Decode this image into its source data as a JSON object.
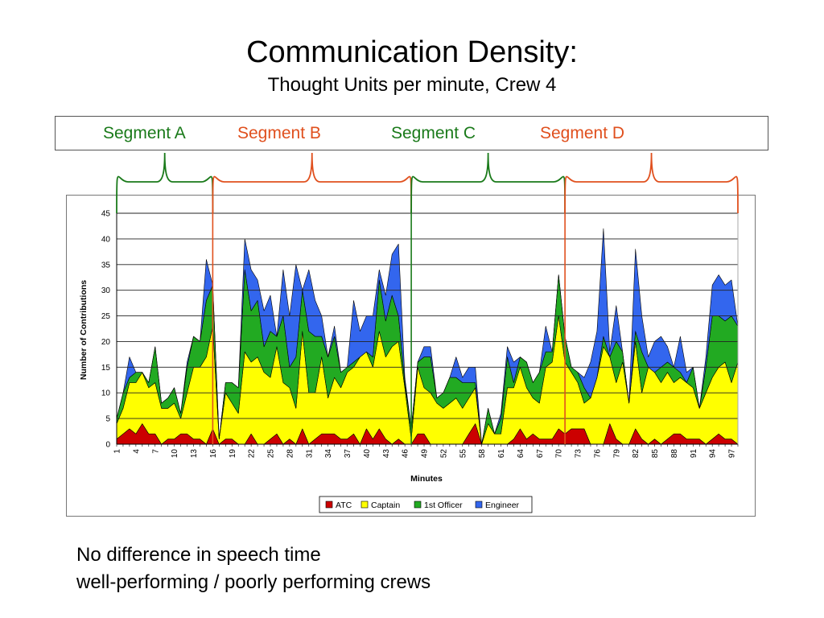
{
  "title": "Communication Density:",
  "subtitle": "Thought Units per minute, Crew 4",
  "segments": [
    {
      "label": "Segment A",
      "color": "#1a7a1a",
      "start": 1,
      "end": 16
    },
    {
      "label": "Segment B",
      "color": "#e0501e",
      "start": 16,
      "end": 47
    },
    {
      "label": "Segment C",
      "color": "#1a7a1a",
      "start": 47,
      "end": 71
    },
    {
      "label": "Segment D",
      "color": "#e0501e",
      "start": 71,
      "end": 98
    }
  ],
  "footer": {
    "line1": "No difference in speech time",
    "line2": "well-performing / poorly performing crews"
  },
  "chart_data": {
    "type": "area",
    "stacked": true,
    "ylabel": "Number of Contributions",
    "xlabel": "Minutes",
    "ylim": [
      0,
      45
    ],
    "yticks": [
      0,
      5,
      10,
      15,
      20,
      25,
      30,
      35,
      40,
      45
    ],
    "xlim": [
      1,
      98
    ],
    "xticks": [
      1,
      4,
      7,
      10,
      13,
      16,
      19,
      22,
      25,
      28,
      31,
      34,
      37,
      40,
      43,
      46,
      49,
      52,
      55,
      58,
      61,
      64,
      67,
      70,
      73,
      76,
      79,
      82,
      85,
      88,
      91,
      94,
      97
    ],
    "grid": true,
    "legend_position": "bottom",
    "series": [
      {
        "name": "ATC",
        "color": "#cc0000",
        "values": [
          1,
          2,
          3,
          2,
          4,
          2,
          2,
          0,
          1,
          1,
          2,
          2,
          1,
          1,
          0,
          3,
          0,
          1,
          1,
          0,
          0,
          2,
          0,
          0,
          1,
          2,
          0,
          1,
          0,
          3,
          0,
          1,
          2,
          2,
          2,
          1,
          1,
          2,
          0,
          3,
          1,
          3,
          1,
          0,
          1,
          0,
          0,
          2,
          2,
          0,
          0,
          0,
          0,
          0,
          0,
          2,
          4,
          0,
          0,
          0,
          0,
          0,
          1,
          3,
          1,
          2,
          1,
          1,
          1,
          3,
          2,
          3,
          3,
          3,
          0,
          0,
          0,
          4,
          1,
          0,
          0,
          3,
          1,
          0,
          1,
          0,
          1,
          2,
          2,
          1,
          1,
          1,
          0,
          1,
          2,
          1,
          1,
          0
        ]
      },
      {
        "name": "Captain",
        "color": "#ffff00",
        "values": [
          3,
          5,
          9,
          10,
          10,
          9,
          10,
          7,
          6,
          7,
          3,
          8,
          14,
          14,
          17,
          20,
          1,
          9,
          7,
          6,
          18,
          14,
          17,
          14,
          12,
          17,
          12,
          10,
          7,
          19,
          10,
          9,
          15,
          7,
          11,
          10,
          13,
          13,
          17,
          15,
          14,
          19,
          16,
          19,
          19,
          11,
          1,
          13,
          9,
          10,
          8,
          7,
          8,
          9,
          7,
          7,
          7,
          0,
          4,
          2,
          2,
          11,
          10,
          12,
          10,
          7,
          7,
          14,
          15,
          22,
          14,
          11,
          9,
          5,
          9,
          13,
          19,
          13,
          11,
          16,
          8,
          17,
          9,
          15,
          13,
          12,
          13,
          10,
          11,
          11,
          10,
          6,
          10,
          12,
          13,
          15,
          11,
          16
        ]
      },
      {
        "name": "1st Officer",
        "color": "#22aa22",
        "values": [
          1,
          3,
          1,
          2,
          0,
          1,
          7,
          1,
          2,
          3,
          1,
          5,
          6,
          5,
          11,
          8,
          0,
          2,
          4,
          5,
          16,
          10,
          11,
          5,
          9,
          2,
          13,
          4,
          10,
          8,
          12,
          11,
          4,
          8,
          8,
          3,
          1,
          1,
          0,
          0,
          2,
          10,
          7,
          10,
          5,
          1,
          2,
          1,
          6,
          7,
          1,
          3,
          5,
          4,
          5,
          3,
          1,
          0,
          3,
          0,
          3,
          6,
          1,
          2,
          5,
          3,
          6,
          3,
          2,
          8,
          5,
          1,
          2,
          3,
          0,
          0,
          2,
          0,
          8,
          2,
          0,
          2,
          8,
          0,
          0,
          3,
          2,
          3,
          1,
          0,
          4,
          0,
          5,
          12,
          10,
          8,
          13,
          7
        ]
      },
      {
        "name": "Engineer",
        "color": "#3366ee",
        "values": [
          0,
          0,
          4,
          0,
          0,
          0,
          0,
          0,
          0,
          0,
          0,
          1,
          0,
          0,
          8,
          0,
          0,
          0,
          0,
          0,
          6,
          8,
          4,
          7,
          7,
          0,
          9,
          10,
          18,
          0,
          12,
          7,
          4,
          0,
          2,
          0,
          0,
          12,
          5,
          7,
          8,
          2,
          5,
          8,
          14,
          1,
          0,
          0,
          2,
          2,
          0,
          0,
          0,
          4,
          1,
          3,
          3,
          0,
          0,
          0,
          1,
          2,
          4,
          0,
          0,
          0,
          0,
          5,
          0,
          0,
          0,
          0,
          0,
          2,
          7,
          9,
          21,
          1,
          7,
          0,
          0,
          16,
          7,
          2,
          6,
          6,
          3,
          0,
          7,
          2,
          0,
          0,
          2,
          6,
          8,
          7,
          7,
          0
        ]
      }
    ]
  }
}
